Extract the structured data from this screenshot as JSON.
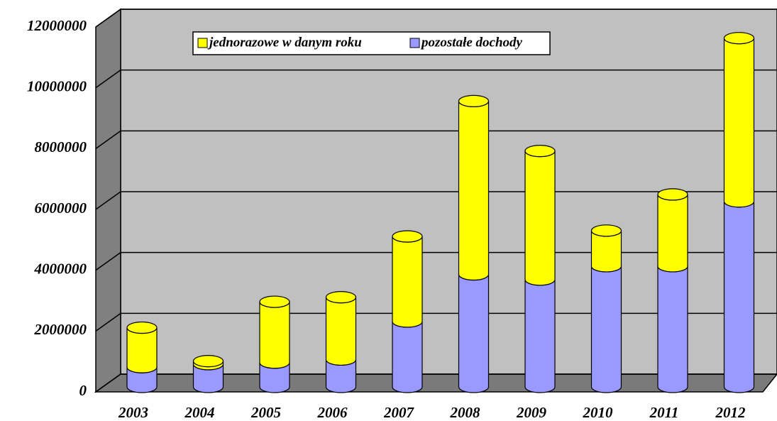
{
  "chart_data": {
    "type": "bar",
    "stacked": true,
    "three_d": true,
    "categories": [
      "2003",
      "2004",
      "2005",
      "2006",
      "2007",
      "2008",
      "2009",
      "2010",
      "2011",
      "2012"
    ],
    "series": [
      {
        "name": "jednorazowe w danym roku",
        "color": "#ffff00",
        "values": [
          1300000,
          100000,
          2000000,
          2050000,
          2800000,
          5700000,
          4230000,
          1170000,
          2360000,
          5370000
        ]
      },
      {
        "name": "pozostałe dochody",
        "color": "#9999ff",
        "values": [
          650000,
          750000,
          800000,
          900000,
          2150000,
          3700000,
          3530000,
          3970000,
          3970000,
          6100000
        ]
      }
    ],
    "ylim": [
      0,
      12000000
    ],
    "yticks": [
      0,
      2000000,
      4000000,
      6000000,
      8000000,
      10000000,
      12000000
    ],
    "grid": true
  }
}
